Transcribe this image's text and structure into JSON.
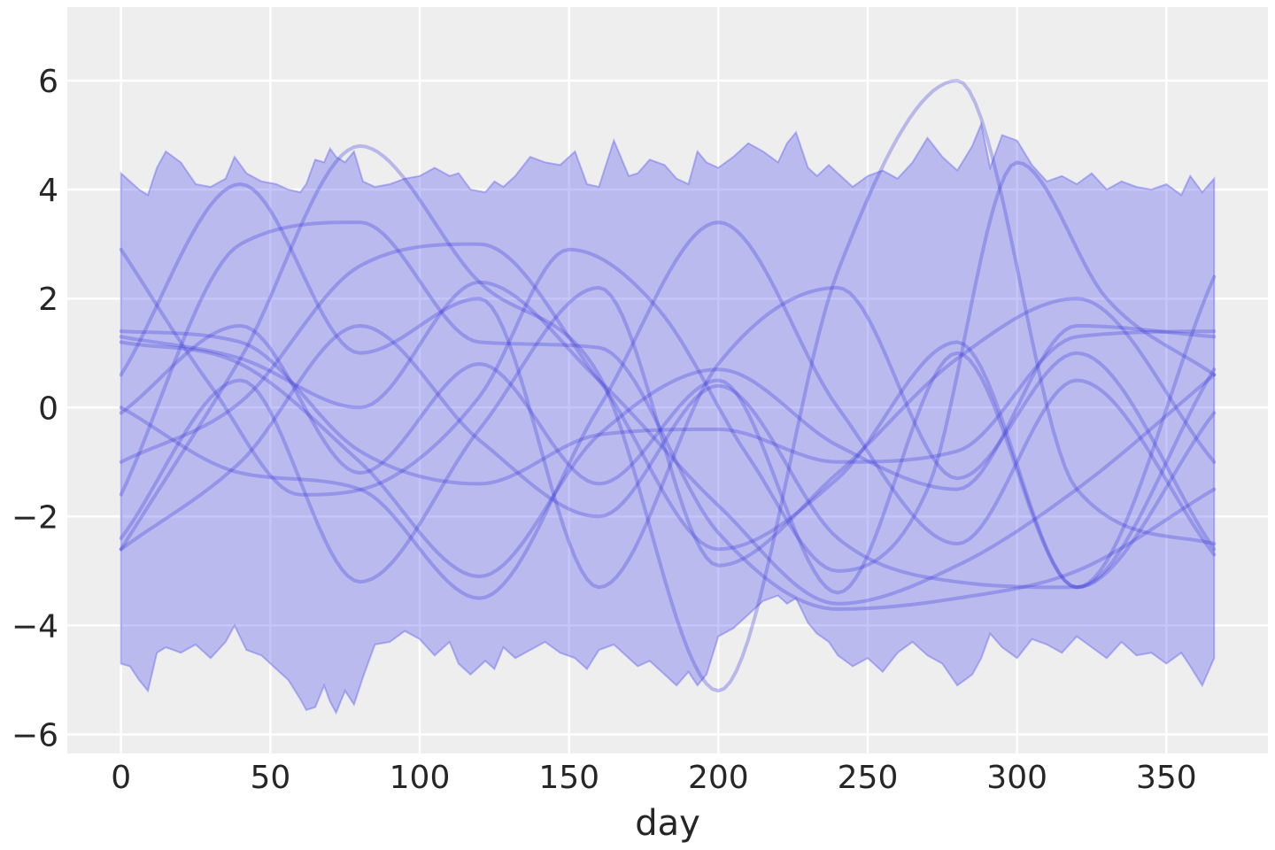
{
  "chart_data": {
    "type": "line",
    "xlabel": "day",
    "ylabel": "",
    "xlim": [
      -18,
      384
    ],
    "ylim": [
      -6.35,
      7.35
    ],
    "grid": true,
    "x_ticks": [
      0,
      50,
      100,
      150,
      200,
      250,
      300,
      350
    ],
    "y_ticks": [
      -6,
      -4,
      -2,
      0,
      2,
      4,
      6
    ],
    "x_tick_labels": [
      "0",
      "50",
      "100",
      "150",
      "200",
      "250",
      "300",
      "350"
    ],
    "y_tick_labels": [
      "−6",
      "−4",
      "−2",
      "0",
      "2",
      "4",
      "6"
    ],
    "colors": {
      "background": "#eeeeee",
      "grid": "#ffffff",
      "band": "#6666ee",
      "line": "#3b3bdc",
      "text": "#262626"
    },
    "band": {
      "name": "",
      "x": [
        0,
        3,
        6,
        9,
        12,
        15,
        20,
        25,
        30,
        35,
        38,
        42,
        47,
        52,
        56,
        60,
        62,
        65,
        68,
        70,
        72,
        75,
        78,
        81,
        85,
        90,
        95,
        100,
        105,
        110,
        113,
        117,
        122,
        125,
        128,
        132,
        137,
        142,
        147,
        152,
        156,
        160,
        165,
        170,
        173,
        177,
        182,
        186,
        190,
        193,
        196,
        200,
        205,
        210,
        215,
        220,
        223,
        226,
        230,
        233,
        237,
        240,
        245,
        250,
        255,
        260,
        265,
        270,
        275,
        280,
        285,
        288,
        291,
        295,
        300,
        305,
        310,
        315,
        320,
        325,
        330,
        335,
        340,
        345,
        350,
        355,
        358,
        362,
        366
      ],
      "upper": [
        4.3,
        4.15,
        4.0,
        3.9,
        4.4,
        4.7,
        4.5,
        4.1,
        4.05,
        4.2,
        4.6,
        4.3,
        4.15,
        4.1,
        4.0,
        3.95,
        4.1,
        4.55,
        4.5,
        4.75,
        4.6,
        4.5,
        4.7,
        4.15,
        4.05,
        4.1,
        4.2,
        4.25,
        4.4,
        4.25,
        4.3,
        4.0,
        3.95,
        4.15,
        4.05,
        4.25,
        4.6,
        4.5,
        4.45,
        4.7,
        4.1,
        4.05,
        4.9,
        4.25,
        4.3,
        4.55,
        4.45,
        4.2,
        4.1,
        4.7,
        4.5,
        4.4,
        4.6,
        4.85,
        4.7,
        4.5,
        4.85,
        5.05,
        4.4,
        4.25,
        4.45,
        4.3,
        4.05,
        4.25,
        4.35,
        4.2,
        4.5,
        4.95,
        4.6,
        4.35,
        4.8,
        5.2,
        4.4,
        5.0,
        4.9,
        4.45,
        4.15,
        4.25,
        4.1,
        4.3,
        4.0,
        4.15,
        4.05,
        4.0,
        4.1,
        3.9,
        4.25,
        3.95,
        4.2
      ],
      "lower": [
        -4.7,
        -4.75,
        -5.0,
        -5.2,
        -4.5,
        -4.4,
        -4.5,
        -4.35,
        -4.6,
        -4.3,
        -4.0,
        -4.45,
        -4.55,
        -4.8,
        -5.0,
        -5.35,
        -5.55,
        -5.5,
        -5.1,
        -5.4,
        -5.6,
        -5.2,
        -5.45,
        -4.95,
        -4.35,
        -4.3,
        -4.1,
        -4.25,
        -4.55,
        -4.3,
        -4.7,
        -4.9,
        -4.65,
        -4.8,
        -4.4,
        -4.6,
        -4.45,
        -4.3,
        -4.5,
        -4.6,
        -4.8,
        -4.45,
        -4.35,
        -4.6,
        -4.75,
        -4.65,
        -4.9,
        -5.1,
        -4.85,
        -5.1,
        -4.9,
        -4.2,
        -4.05,
        -3.8,
        -3.55,
        -3.45,
        -3.6,
        -3.5,
        -3.95,
        -4.15,
        -4.3,
        -4.55,
        -4.75,
        -4.6,
        -4.85,
        -4.5,
        -4.3,
        -4.55,
        -4.7,
        -5.1,
        -4.9,
        -4.6,
        -4.15,
        -4.4,
        -4.6,
        -4.25,
        -4.35,
        -4.5,
        -4.2,
        -4.4,
        -4.6,
        -4.3,
        -4.55,
        -4.5,
        -4.7,
        -4.5,
        -4.75,
        -5.1,
        -4.6
      ]
    },
    "series": [
      {
        "x": [
          0,
          40,
          80,
          120,
          160,
          200,
          240,
          280,
          320,
          366
        ],
        "values": [
          -2.6,
          0.9,
          4.8,
          2.3,
          0.6,
          -5.2,
          2.5,
          6.0,
          -1.5,
          -2.5
        ]
      },
      {
        "x": [
          0,
          30,
          60,
          90,
          120,
          150,
          180,
          210,
          240,
          270,
          300,
          330,
          366
        ],
        "values": [
          2.9,
          0.4,
          -1.6,
          -1.3,
          0.2,
          2.9,
          1.8,
          -0.9,
          -3.0,
          -1.5,
          4.5,
          2.0,
          0.6
        ]
      },
      {
        "x": [
          0,
          40,
          80,
          120,
          160,
          200,
          240,
          280,
          320,
          366
        ],
        "values": [
          0.6,
          4.1,
          1.0,
          2.0,
          -3.3,
          0.8,
          2.2,
          -1.3,
          1.0,
          -2.6
        ]
      },
      {
        "x": [
          0,
          40,
          80,
          120,
          160,
          200,
          240,
          280,
          320,
          366
        ],
        "values": [
          1.4,
          1.2,
          -0.8,
          -1.4,
          -0.5,
          -0.4,
          -1.0,
          -0.8,
          1.3,
          1.4
        ]
      },
      {
        "x": [
          0,
          40,
          80,
          120,
          160,
          200,
          240,
          280,
          320,
          366
        ],
        "values": [
          -1.0,
          0.1,
          2.6,
          3.0,
          0.5,
          -2.6,
          -1.3,
          1.2,
          -3.3,
          -0.1
        ]
      },
      {
        "x": [
          0,
          40,
          80,
          120,
          160,
          200,
          240,
          280,
          320,
          366
        ],
        "values": [
          -0.1,
          1.5,
          -1.2,
          0.8,
          -1.4,
          0.5,
          -3.4,
          1.0,
          -3.3,
          0.7
        ]
      },
      {
        "x": [
          0,
          40,
          80,
          120,
          160,
          200,
          240,
          280,
          320,
          366
        ],
        "values": [
          1.2,
          0.8,
          -1.0,
          -3.1,
          -0.5,
          0.7,
          -0.7,
          -1.5,
          1.5,
          1.3
        ]
      },
      {
        "x": [
          0,
          40,
          80,
          120,
          160,
          200,
          240,
          280,
          320,
          366
        ],
        "values": [
          -1.6,
          3.0,
          3.4,
          1.2,
          1.1,
          -2.3,
          -3.7,
          -3.5,
          -3.0,
          -1.5
        ]
      },
      {
        "x": [
          0,
          40,
          80,
          120,
          160,
          200,
          240,
          280,
          320,
          366
        ],
        "values": [
          -2.4,
          0.5,
          -3.2,
          -0.4,
          2.2,
          -2.9,
          -1.2,
          0.9,
          2.0,
          -1.0
        ]
      },
      {
        "x": [
          0,
          40,
          80,
          120,
          160,
          200,
          240,
          280,
          320,
          366
        ],
        "values": [
          1.3,
          0.9,
          0.0,
          2.3,
          0.5,
          -1.8,
          -3.6,
          -2.9,
          -1.5,
          0.6
        ]
      },
      {
        "x": [
          0,
          40,
          80,
          120,
          160,
          200,
          240,
          280,
          320,
          366
        ],
        "values": [
          -2.6,
          -1.0,
          1.5,
          -0.6,
          -2.0,
          0.4,
          -2.4,
          -3.2,
          -3.3,
          2.4
        ]
      },
      {
        "x": [
          0,
          40,
          80,
          120,
          160,
          200,
          240,
          280,
          320,
          366
        ],
        "values": [
          0.0,
          -1.2,
          -1.5,
          -3.5,
          0.0,
          3.4,
          0.0,
          -2.5,
          0.5,
          -2.7
        ]
      }
    ]
  }
}
